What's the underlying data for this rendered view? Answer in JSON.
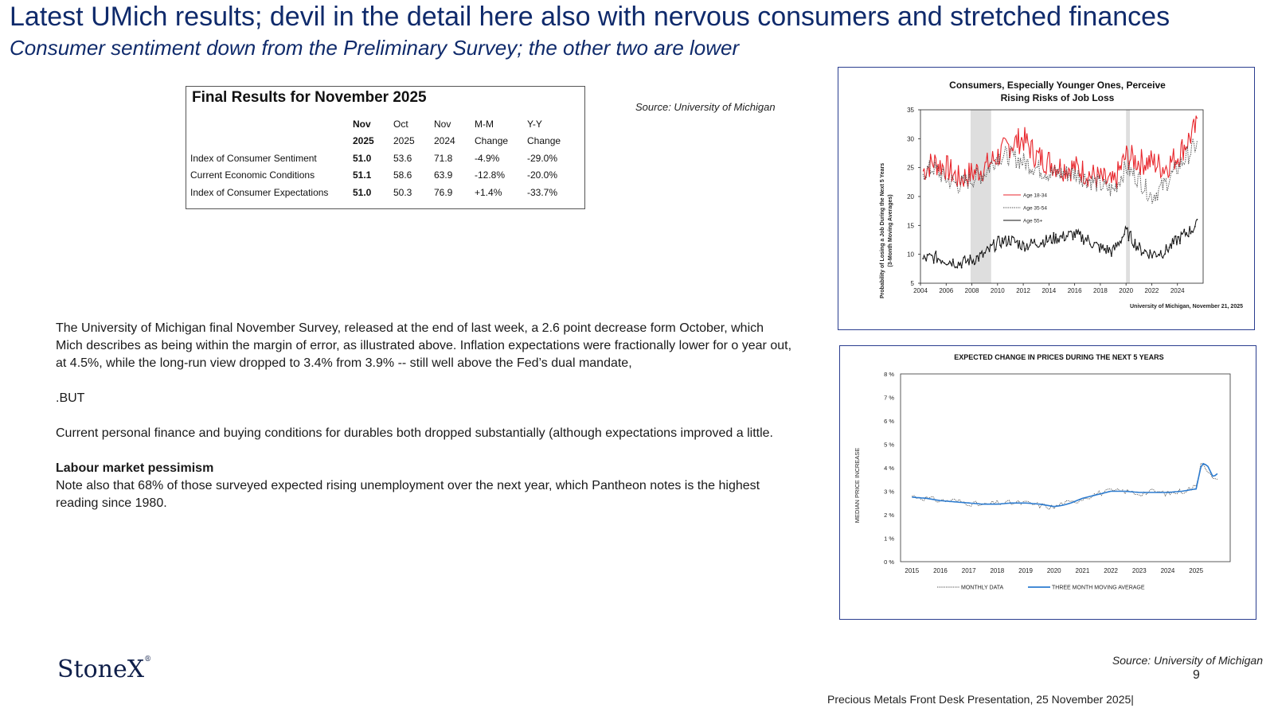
{
  "header": {
    "title": "Latest  UMich results; devil in the detail here also with nervous consumers and stretched finances",
    "subtitle": "Consumer sentiment down from the Preliminary Survey; the other two are lower"
  },
  "results_table": {
    "title": "Final Results for November 2025",
    "header_row1": [
      "Nov",
      "Oct",
      "Nov",
      "M-M",
      "Y-Y"
    ],
    "header_row2": [
      "2025",
      "2025",
      "2024",
      "Change",
      "Change"
    ],
    "rows": [
      {
        "label": "Index of Consumer Sentiment",
        "values": [
          "51.0",
          "53.6",
          "71.8",
          "-4.9%",
          "-29.0%"
        ]
      },
      {
        "label": "Current Economic Conditions",
        "values": [
          "51.1",
          "58.6",
          "63.9",
          "-12.8%",
          "-20.0%"
        ]
      },
      {
        "label": "Index of Consumer Expectations",
        "values": [
          "51.0",
          "50.3",
          "76.9",
          "+1.4%",
          "-33.7%"
        ]
      }
    ]
  },
  "source_top": "Source: University of Michigan",
  "body": {
    "para1": "The University of Michigan final November Survey, released at the end of last week,  a 2.6 point decrease form October, which Mich describes as being within the margin of error, as illustrated above.  Inflation expectations were fractionally lower for o year out, at 4.5%, while the long-run view dropped to 3.4% from 3.9% -- still well above the Fed’s dual mandate,",
    "para2": ".BUT",
    "para3": "Current personal finance and buying conditions for durables both dropped substantially (although expectations improved a little.",
    "heading": "Labour market pessimism",
    "para4": "Note also that 68% of those surveyed expected rising unemployment over the next year, which Pantheon notes is the highest reading since 1980."
  },
  "chart_data": [
    {
      "type": "line",
      "title": "Consumers, Especially Younger Ones, Perceive Rising Risks of Job Loss",
      "ylabel": "Probability of Losing a Job During the Next 5 Years (3-Month Moving Averages)",
      "xlabel": "",
      "note": "University of Michigan, November 21, 2025",
      "xlim": [
        2004,
        2026
      ],
      "ylim": [
        5,
        35
      ],
      "x_ticks": [
        "2004",
        "2006",
        "2008",
        "2010",
        "2012",
        "2014",
        "2016",
        "2018",
        "2020",
        "2022",
        "2024"
      ],
      "y_ticks": [
        "5",
        "10",
        "15",
        "20",
        "25",
        "30",
        "35"
      ],
      "shaded_periods": [
        [
          2007.9,
          2009.5
        ],
        [
          2020.0,
          2020.3
        ]
      ],
      "colors": {
        "age_18_34": "#e8262c",
        "age_35_54": "#555555",
        "age_55_plus": "#111111"
      },
      "series": [
        {
          "name": "Age 18-34",
          "x": [
            2004,
            2005,
            2006,
            2007,
            2008,
            2009,
            2010,
            2011,
            2012,
            2013,
            2014,
            2015,
            2016,
            2017,
            2018,
            2019,
            2020,
            2021,
            2022,
            2023,
            2024,
            2025.5
          ],
          "values": [
            24,
            26,
            25,
            23,
            24,
            25,
            27,
            29,
            30,
            27,
            26,
            25,
            25,
            24,
            23,
            22,
            27,
            26,
            26,
            25,
            27,
            32
          ]
        },
        {
          "name": "Age 35-54",
          "x": [
            2004,
            2005,
            2006,
            2007,
            2008,
            2009,
            2010,
            2011,
            2012,
            2013,
            2014,
            2015,
            2016,
            2017,
            2018,
            2019,
            2020,
            2021,
            2022,
            2023,
            2024,
            2025.5
          ],
          "values": [
            24,
            25,
            23,
            22,
            23,
            24,
            27,
            27,
            26,
            25,
            24,
            24,
            24,
            23,
            22,
            21,
            25,
            23,
            20,
            22,
            25,
            29
          ]
        },
        {
          "name": "Age 55+",
          "x": [
            2004,
            2005,
            2006,
            2007,
            2008,
            2009,
            2010,
            2011,
            2012,
            2013,
            2014,
            2015,
            2016,
            2017,
            2018,
            2019,
            2020,
            2021,
            2022,
            2023,
            2024,
            2025.5
          ],
          "values": [
            9,
            9.5,
            9,
            8.5,
            9,
            10,
            12,
            12.5,
            11.5,
            12,
            12.5,
            13,
            13.5,
            12.5,
            11,
            10.5,
            14,
            11,
            10,
            10.5,
            12.5,
            15
          ]
        }
      ]
    },
    {
      "type": "line",
      "title": "EXPECTED CHANGE IN PRICES DURING THE NEXT 5 YEARS",
      "ylabel": "MEDIAN PRICE INCREASE",
      "xlabel": "",
      "xlim": [
        2014.6,
        2026.2
      ],
      "ylim": [
        0,
        8
      ],
      "x_ticks": [
        "2015",
        "2016",
        "2017",
        "2018",
        "2019",
        "2020",
        "2021",
        "2022",
        "2023",
        "2024",
        "2025"
      ],
      "y_ticks": [
        "0 %",
        "1 %",
        "2 %",
        "3 %",
        "4 %",
        "5 %",
        "6 %",
        "7 %",
        "8 %"
      ],
      "colors": {
        "monthly": "#555555",
        "moving_average": "#2b7bd0"
      },
      "series": [
        {
          "name": "MONTHLY DATA",
          "x": [
            2015,
            2015.5,
            2016,
            2016.5,
            2017,
            2017.5,
            2018,
            2018.5,
            2019,
            2019.5,
            2020,
            2020.3,
            2020.6,
            2021,
            2021.5,
            2022,
            2022.5,
            2023,
            2023.5,
            2024,
            2024.5,
            2025,
            2025.2,
            2025.4,
            2025.6,
            2025.8
          ],
          "values": [
            2.8,
            2.7,
            2.6,
            2.6,
            2.5,
            2.4,
            2.5,
            2.5,
            2.5,
            2.4,
            2.3,
            2.5,
            2.5,
            2.7,
            2.9,
            3.0,
            3.0,
            2.9,
            3.0,
            2.9,
            3.0,
            3.2,
            4.4,
            3.9,
            3.5,
            3.4
          ]
        },
        {
          "name": "THREE MONTH MOVING AVERAGE",
          "x": [
            2015,
            2015.5,
            2016,
            2016.5,
            2017,
            2017.5,
            2018,
            2018.5,
            2019,
            2019.5,
            2020,
            2020.3,
            2020.6,
            2021,
            2021.5,
            2022,
            2022.5,
            2023,
            2023.5,
            2024,
            2024.5,
            2025,
            2025.2,
            2025.4,
            2025.6,
            2025.8
          ],
          "values": [
            2.75,
            2.7,
            2.6,
            2.55,
            2.5,
            2.45,
            2.45,
            2.5,
            2.5,
            2.45,
            2.35,
            2.4,
            2.5,
            2.7,
            2.85,
            3.0,
            3.0,
            2.95,
            2.95,
            2.95,
            3.0,
            3.1,
            4.2,
            4.1,
            3.6,
            3.8
          ]
        }
      ]
    }
  ],
  "footer": {
    "logo": "StoneX",
    "source_bottom": "Source: University of Michigan",
    "page_number": "9",
    "presentation": "Precious Metals Front Desk Presentation, 25 November 2025|"
  }
}
